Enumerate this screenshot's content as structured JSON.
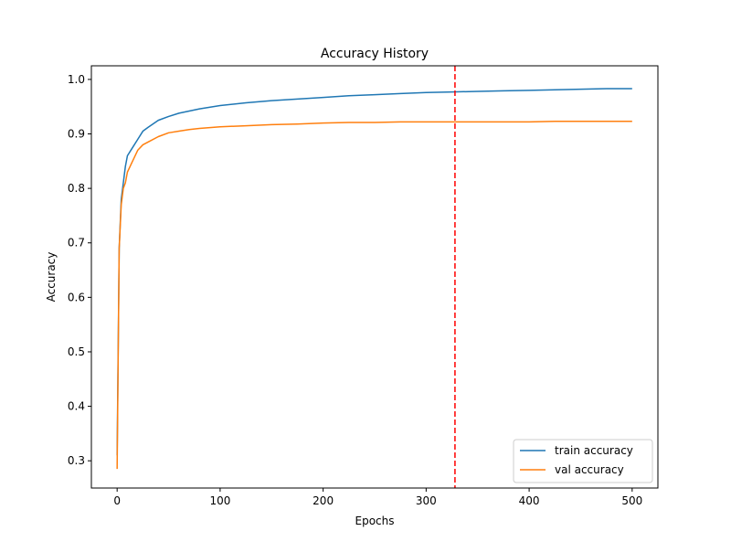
{
  "chart_data": {
    "type": "line",
    "title": "Accuracy History",
    "xlabel": "Epochs",
    "ylabel": "Accuracy",
    "xlim": [
      -25,
      525
    ],
    "ylim": [
      0.25,
      1.025
    ],
    "xticks": [
      0,
      100,
      200,
      300,
      400,
      500
    ],
    "yticks": [
      0.3,
      0.4,
      0.5,
      0.6,
      0.7,
      0.8,
      0.9,
      1.0
    ],
    "xtick_labels": [
      "0",
      "100",
      "200",
      "300",
      "400",
      "500"
    ],
    "ytick_labels": [
      "0.3",
      "0.4",
      "0.5",
      "0.6",
      "0.7",
      "0.8",
      "0.9",
      "1.0"
    ],
    "grid": false,
    "legend_position": "lower-right",
    "vline": {
      "x": 328,
      "color": "#ff0000",
      "style": "dashed"
    },
    "series": [
      {
        "name": "train accuracy",
        "color": "#1f77b4",
        "x": [
          0,
          2,
          4,
          6,
          8,
          10,
          15,
          20,
          25,
          30,
          40,
          50,
          60,
          70,
          80,
          100,
          125,
          150,
          175,
          200,
          225,
          250,
          275,
          300,
          325,
          350,
          375,
          400,
          425,
          450,
          475,
          500
        ],
        "values": [
          0.31,
          0.69,
          0.78,
          0.81,
          0.84,
          0.86,
          0.875,
          0.89,
          0.905,
          0.912,
          0.925,
          0.932,
          0.938,
          0.942,
          0.946,
          0.952,
          0.957,
          0.961,
          0.964,
          0.967,
          0.97,
          0.972,
          0.974,
          0.976,
          0.977,
          0.978,
          0.979,
          0.98,
          0.981,
          0.982,
          0.983,
          0.983
        ]
      },
      {
        "name": "val accuracy",
        "color": "#ff7f0e",
        "x": [
          0,
          2,
          4,
          6,
          8,
          10,
          15,
          20,
          25,
          30,
          40,
          50,
          60,
          70,
          80,
          100,
          125,
          150,
          175,
          200,
          225,
          250,
          275,
          300,
          325,
          350,
          375,
          400,
          425,
          450,
          475,
          500
        ],
        "values": [
          0.285,
          0.69,
          0.77,
          0.8,
          0.81,
          0.83,
          0.85,
          0.87,
          0.88,
          0.885,
          0.895,
          0.902,
          0.905,
          0.908,
          0.91,
          0.913,
          0.915,
          0.917,
          0.918,
          0.92,
          0.921,
          0.921,
          0.922,
          0.922,
          0.922,
          0.922,
          0.922,
          0.922,
          0.923,
          0.923,
          0.923,
          0.923
        ]
      }
    ]
  }
}
